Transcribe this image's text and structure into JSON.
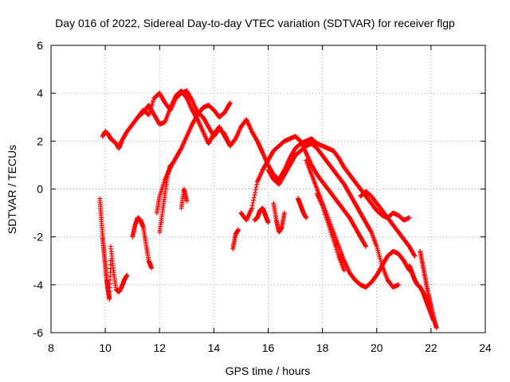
{
  "colors": {
    "series": "#ff0000",
    "background": "#ffffff",
    "axis": "#000000",
    "grid": "#a0a0a0"
  },
  "chart_data": {
    "type": "scatter",
    "title": "Day 016 of 2022, Sidereal Day-to-day VTEC variation (SDTVAR) for receiver flgp",
    "xlabel": "GPS time / hours",
    "ylabel": "SDTVAR / TECUs",
    "xlim": [
      8,
      24
    ],
    "ylim": [
      -6,
      6
    ],
    "xticks": [
      8,
      10,
      12,
      14,
      16,
      18,
      20,
      22,
      24
    ],
    "yticks": [
      -6,
      -4,
      -2,
      0,
      2,
      4,
      6
    ],
    "grid": true,
    "marker": "+",
    "series": [
      {
        "name": "s1",
        "x": [
          9.9,
          10.0,
          10.1,
          10.2,
          10.3,
          10.4,
          10.5,
          10.6,
          10.8,
          11.0,
          11.2,
          11.4,
          11.6,
          11.8,
          12.0,
          12.2,
          12.4,
          12.6,
          12.8,
          13.0,
          13.2,
          13.4,
          13.6,
          13.8,
          14.0,
          14.2,
          14.4,
          14.6
        ],
        "y": [
          2.2,
          2.4,
          2.3,
          2.1,
          2.0,
          1.9,
          1.7,
          2.0,
          2.4,
          2.7,
          3.0,
          3.3,
          3.1,
          3.8,
          4.0,
          3.6,
          3.3,
          3.8,
          4.0,
          4.1,
          3.7,
          3.2,
          3.0,
          2.6,
          2.2,
          2.5,
          2.3,
          1.8
        ]
      },
      {
        "name": "s2",
        "x": [
          11.2,
          11.4,
          11.6,
          11.8,
          12.0,
          12.2,
          12.4,
          12.6,
          12.8,
          13.0,
          13.2,
          13.4,
          13.6,
          13.8,
          14.0,
          14.2,
          14.4,
          14.6,
          14.8,
          15.0,
          15.2,
          15.4,
          15.6,
          15.8
        ],
        "y": [
          3.0,
          3.2,
          3.5,
          3.1,
          2.7,
          2.8,
          3.4,
          3.9,
          4.1,
          3.8,
          3.3,
          2.9,
          2.4,
          1.9,
          2.3,
          2.6,
          2.2,
          1.8,
          2.1,
          2.6,
          2.9,
          2.4,
          2.0,
          1.5
        ]
      },
      {
        "name": "s3",
        "x": [
          11.9,
          12.0,
          12.2,
          12.4,
          12.6,
          12.8,
          13.0,
          13.2,
          13.4,
          13.6,
          13.8,
          14.0,
          14.2,
          14.4,
          14.6
        ],
        "y": [
          -1.0,
          -0.3,
          0.4,
          0.9,
          1.3,
          1.7,
          2.2,
          2.7,
          3.1,
          3.4,
          3.5,
          3.3,
          3.0,
          3.2,
          3.6
        ]
      },
      {
        "name": "s4",
        "x": [
          9.8,
          9.85,
          9.9,
          9.95,
          10.0,
          10.05,
          10.1,
          10.15,
          10.2
        ],
        "y": [
          -0.4,
          -1.2,
          -2.0,
          -2.6,
          -3.2,
          -3.8,
          -4.2,
          -4.6,
          -3.0
        ]
      },
      {
        "name": "s5",
        "x": [
          10.2,
          10.3,
          10.4,
          10.5,
          10.6,
          10.7,
          10.8
        ],
        "y": [
          -2.4,
          -3.4,
          -4.2,
          -4.3,
          -4.1,
          -3.8,
          -3.6
        ]
      },
      {
        "name": "s6",
        "x": [
          11.0,
          11.1,
          11.2,
          11.3,
          11.4,
          11.5,
          11.6,
          11.7
        ],
        "y": [
          -2.0,
          -1.5,
          -1.2,
          -1.3,
          -1.6,
          -2.3,
          -3.0,
          -3.3
        ]
      },
      {
        "name": "s7",
        "x": [
          12.0,
          12.1,
          12.2,
          12.3,
          12.4
        ],
        "y": [
          -1.8,
          -1.0,
          -0.2,
          0.6,
          1.0
        ]
      },
      {
        "name": "s8",
        "x": [
          12.8,
          12.9,
          13.0
        ],
        "y": [
          -0.8,
          0.0,
          -0.5
        ]
      },
      {
        "name": "s9",
        "x": [
          14.7,
          14.8,
          14.9
        ],
        "y": [
          -2.5,
          -1.9,
          -1.7
        ]
      },
      {
        "name": "s10",
        "x": [
          15.0,
          15.2,
          15.4,
          15.6,
          15.8,
          16.0,
          16.2,
          16.4,
          16.6,
          16.8,
          17.0,
          17.2,
          17.4,
          17.6,
          17.8,
          18.0,
          18.2,
          18.4,
          18.6,
          18.8,
          19.0,
          19.2,
          19.4,
          19.6
        ],
        "y": [
          -1.0,
          -1.3,
          -0.8,
          0.3,
          0.8,
          1.2,
          1.6,
          1.8,
          2.0,
          2.1,
          2.2,
          2.0,
          1.5,
          1.0,
          0.6,
          0.3,
          0.0,
          -0.3,
          -0.6,
          -0.9,
          -1.2,
          -1.6,
          -2.0,
          -2.4
        ]
      },
      {
        "name": "s11",
        "x": [
          15.6,
          15.8,
          16.0,
          16.2,
          16.4,
          16.6,
          16.8,
          17.0,
          17.2,
          17.4,
          17.6,
          17.8,
          18.0,
          18.2,
          18.4,
          18.6,
          18.8,
          19.0,
          19.2,
          19.4,
          19.6,
          19.8,
          20.0,
          20.2,
          20.4,
          20.6,
          20.8,
          21.0,
          21.2
        ],
        "y": [
          2.0,
          1.5,
          1.0,
          0.6,
          0.4,
          0.8,
          1.3,
          1.7,
          1.9,
          2.0,
          2.1,
          1.9,
          1.8,
          1.7,
          1.6,
          1.3,
          0.9,
          0.6,
          0.3,
          0.0,
          -0.3,
          -0.6,
          -0.9,
          -1.1,
          -1.2,
          -1.0,
          -1.1,
          -1.3,
          -1.2
        ]
      },
      {
        "name": "s12",
        "x": [
          16.0,
          16.2,
          16.4,
          16.6,
          16.8,
          17.0,
          17.2,
          17.4,
          17.6,
          17.8,
          18.0,
          18.2,
          18.4,
          18.6,
          18.8,
          19.0,
          19.2,
          19.4,
          19.6,
          19.8,
          20.0,
          20.2,
          20.4,
          20.6,
          20.8
        ],
        "y": [
          0.8,
          0.4,
          0.2,
          0.6,
          1.0,
          1.4,
          1.6,
          1.8,
          1.9,
          1.7,
          1.4,
          1.1,
          0.8,
          0.5,
          0.2,
          -0.2,
          -0.6,
          -1.0,
          -1.4,
          -1.8,
          -2.4,
          -3.2,
          -3.8,
          -4.1,
          -4.0
        ]
      },
      {
        "name": "s13",
        "x": [
          17.4,
          17.6,
          17.8,
          18.0,
          18.2,
          18.4,
          18.6,
          18.8,
          19.0,
          19.2,
          19.4,
          19.6,
          19.8,
          20.0,
          20.2,
          20.4,
          20.6,
          20.8,
          21.0,
          21.2
        ],
        "y": [
          1.2,
          0.6,
          0.0,
          -0.6,
          -1.2,
          -1.8,
          -2.4,
          -3.0,
          -3.5,
          -3.8,
          -4.0,
          -4.1,
          -3.9,
          -3.6,
          -3.2,
          -2.8,
          -2.6,
          -2.7,
          -3.0,
          -3.4
        ]
      },
      {
        "name": "s14",
        "x": [
          15.5,
          15.6,
          15.7,
          15.8,
          15.9,
          16.0
        ],
        "y": [
          -1.3,
          -1.2,
          -0.9,
          -0.8,
          -1.1,
          -1.4
        ]
      },
      {
        "name": "s15",
        "x": [
          16.2,
          16.3,
          16.4,
          16.5,
          16.6
        ],
        "y": [
          -0.6,
          -1.3,
          -1.8,
          -1.6,
          -1.0
        ]
      },
      {
        "name": "s16",
        "x": [
          17.1,
          17.2,
          17.3,
          17.4
        ],
        "y": [
          -0.4,
          -0.7,
          -1.0,
          -1.2
        ]
      },
      {
        "name": "s17",
        "x": [
          17.8,
          18.0,
          18.2,
          18.4,
          18.6,
          18.8
        ],
        "y": [
          -0.2,
          -0.7,
          -1.4,
          -2.1,
          -2.8,
          -3.4
        ]
      },
      {
        "name": "s18",
        "x": [
          19.4,
          19.6,
          19.8,
          20.0,
          20.2,
          20.4,
          20.6,
          20.8,
          21.0,
          21.2,
          21.4
        ],
        "y": [
          -0.3,
          -0.1,
          -0.3,
          -0.6,
          -0.9,
          -1.2,
          -1.5,
          -1.8,
          -2.1,
          -2.4,
          -2.8
        ]
      },
      {
        "name": "s19",
        "x": [
          21.6,
          21.7,
          21.8,
          21.9,
          22.0,
          22.1,
          22.2
        ],
        "y": [
          -2.6,
          -3.2,
          -3.8,
          -4.4,
          -4.9,
          -5.4,
          -5.8
        ]
      },
      {
        "name": "s20",
        "x": [
          21.2,
          21.3,
          21.4,
          21.5,
          21.6,
          21.7,
          21.8,
          21.9,
          22.0,
          22.1
        ],
        "y": [
          -3.2,
          -3.5,
          -3.8,
          -4.0,
          -4.1,
          -4.3,
          -4.6,
          -4.9,
          -5.2,
          -5.5
        ]
      }
    ]
  }
}
